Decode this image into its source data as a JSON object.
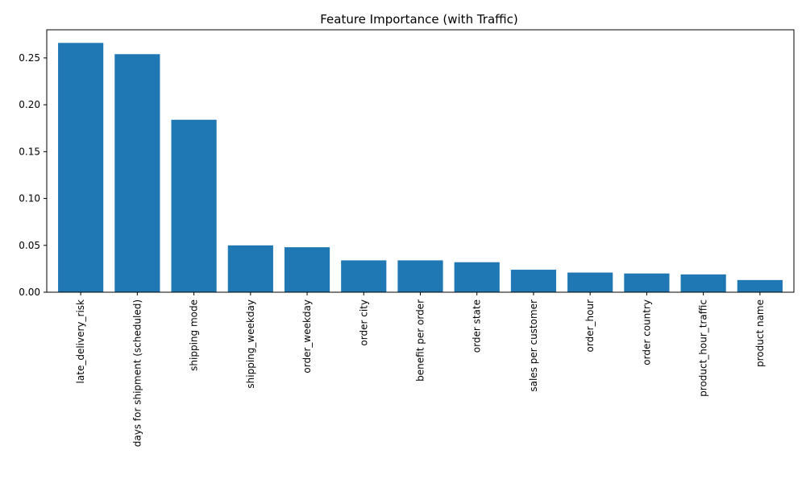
{
  "chart_data": {
    "type": "bar",
    "title": "Feature Importance (with Traffic)",
    "xlabel": "",
    "ylabel": "",
    "categories": [
      "late_delivery_risk",
      "days for shipment (scheduled)",
      "shipping mode",
      "shipping_weekday",
      "order_weekday",
      "order city",
      "benefit per order",
      "order state",
      "sales per customer",
      "order_hour",
      "order country",
      "product_hour_traffic",
      "product name"
    ],
    "values": [
      0.266,
      0.254,
      0.184,
      0.05,
      0.048,
      0.034,
      0.034,
      0.032,
      0.024,
      0.021,
      0.02,
      0.019,
      0.013
    ],
    "ylim": [
      0,
      0.28
    ],
    "yticks": [
      "0.00",
      "0.05",
      "0.10",
      "0.15",
      "0.20",
      "0.25"
    ],
    "bar_color": "#1f77b4",
    "grid": false,
    "legend": "none"
  }
}
